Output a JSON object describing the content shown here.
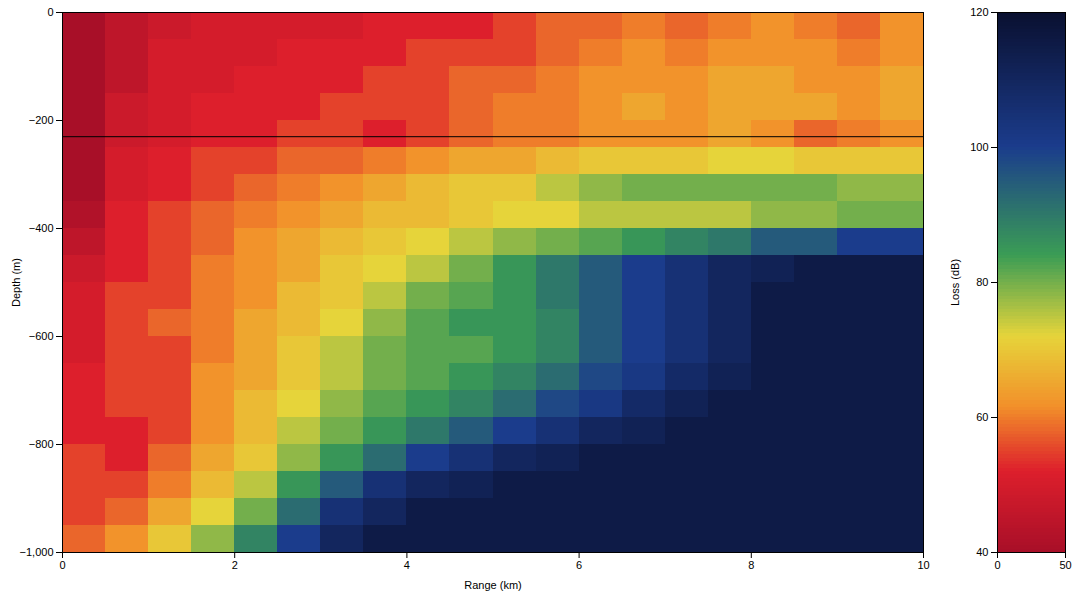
{
  "chart_data": {
    "type": "heatmap",
    "xlabel": "Range (km)",
    "ylabel": "Depth (m)",
    "xlim": [
      0,
      10
    ],
    "xticks": [
      0,
      2,
      4,
      6,
      8,
      10
    ],
    "ylim": [
      -1000,
      0
    ],
    "yticks": [
      0,
      -200,
      -400,
      -600,
      -800,
      -1000
    ],
    "reference_line": -230,
    "range_bins": [
      0,
      0.5,
      1,
      1.5,
      2,
      2.5,
      3,
      3.5,
      4,
      4.5,
      5,
      5.5,
      6,
      6.5,
      7,
      7.5,
      8,
      8.5,
      9,
      9.5,
      10
    ],
    "depth_bins": [
      0,
      -50,
      -100,
      -150,
      -200,
      -250,
      -300,
      -350,
      -400,
      -450,
      -500,
      -550,
      -600,
      -650,
      -700,
      -750,
      -800,
      -850,
      -900,
      -950,
      -1000
    ],
    "values": [
      [
        40,
        45,
        48,
        50,
        50,
        50,
        50,
        52,
        52,
        52,
        55,
        58,
        58,
        60,
        58,
        60,
        62,
        60,
        58,
        62
      ],
      [
        40,
        45,
        50,
        50,
        50,
        52,
        52,
        52,
        55,
        55,
        55,
        58,
        60,
        62,
        60,
        62,
        62,
        62,
        60,
        62
      ],
      [
        40,
        45,
        50,
        50,
        52,
        52,
        52,
        55,
        55,
        58,
        58,
        60,
        62,
        62,
        62,
        65,
        65,
        62,
        62,
        65
      ],
      [
        40,
        48,
        50,
        52,
        52,
        52,
        55,
        55,
        55,
        58,
        60,
        60,
        62,
        65,
        62,
        65,
        65,
        65,
        62,
        65
      ],
      [
        40,
        48,
        50,
        52,
        52,
        55,
        55,
        52,
        55,
        58,
        60,
        60,
        62,
        62,
        62,
        65,
        62,
        58,
        60,
        62
      ],
      [
        40,
        50,
        52,
        55,
        55,
        58,
        58,
        60,
        62,
        65,
        65,
        68,
        70,
        70,
        70,
        72,
        72,
        70,
        70,
        70
      ],
      [
        40,
        50,
        52,
        55,
        58,
        60,
        62,
        65,
        68,
        70,
        70,
        75,
        78,
        80,
        80,
        80,
        80,
        80,
        78,
        78
      ],
      [
        42,
        52,
        55,
        58,
        60,
        62,
        65,
        68,
        68,
        70,
        72,
        72,
        75,
        75,
        75,
        75,
        78,
        78,
        80,
        80
      ],
      [
        45,
        52,
        55,
        58,
        62,
        65,
        68,
        70,
        72,
        75,
        78,
        80,
        82,
        85,
        88,
        90,
        95,
        95,
        100,
        100
      ],
      [
        48,
        52,
        55,
        60,
        62,
        65,
        70,
        72,
        75,
        80,
        85,
        90,
        95,
        100,
        105,
        110,
        112,
        115,
        115,
        115
      ],
      [
        50,
        55,
        55,
        60,
        62,
        68,
        70,
        75,
        80,
        82,
        85,
        90,
        95,
        100,
        105,
        110,
        115,
        115,
        115,
        115
      ],
      [
        50,
        55,
        58,
        60,
        65,
        68,
        72,
        78,
        82,
        85,
        85,
        88,
        95,
        100,
        105,
        110,
        115,
        115,
        115,
        115
      ],
      [
        50,
        55,
        55,
        60,
        65,
        70,
        75,
        80,
        82,
        82,
        85,
        88,
        95,
        100,
        105,
        110,
        115,
        115,
        115,
        115
      ],
      [
        52,
        55,
        55,
        62,
        65,
        70,
        75,
        80,
        82,
        85,
        88,
        92,
        98,
        102,
        108,
        112,
        115,
        115,
        115,
        115
      ],
      [
        52,
        55,
        55,
        62,
        68,
        72,
        78,
        82,
        85,
        88,
        92,
        98,
        102,
        108,
        112,
        115,
        115,
        115,
        115,
        115
      ],
      [
        52,
        52,
        55,
        62,
        68,
        75,
        80,
        85,
        90,
        95,
        100,
        105,
        110,
        112,
        115,
        115,
        115,
        115,
        115,
        115
      ],
      [
        55,
        52,
        58,
        65,
        70,
        78,
        85,
        92,
        100,
        105,
        110,
        112,
        115,
        115,
        115,
        115,
        115,
        115,
        115,
        115
      ],
      [
        55,
        55,
        60,
        68,
        75,
        85,
        95,
        105,
        110,
        112,
        115,
        115,
        115,
        115,
        115,
        115,
        115,
        115,
        115,
        115
      ],
      [
        55,
        58,
        65,
        72,
        80,
        92,
        105,
        110,
        115,
        115,
        115,
        115,
        115,
        115,
        115,
        115,
        115,
        115,
        115,
        115
      ],
      [
        58,
        62,
        70,
        78,
        88,
        100,
        110,
        115,
        115,
        115,
        115,
        115,
        115,
        115,
        115,
        115,
        115,
        115,
        115,
        115
      ]
    ],
    "colorbar_label": "Loss (dB)",
    "colorbar_lim": [
      40,
      120
    ],
    "colorbar_ticks": [
      40,
      60,
      80,
      100,
      120
    ],
    "colorbar_xlim": [
      0,
      50
    ],
    "colorbar_xticks": [
      0,
      50
    ]
  }
}
